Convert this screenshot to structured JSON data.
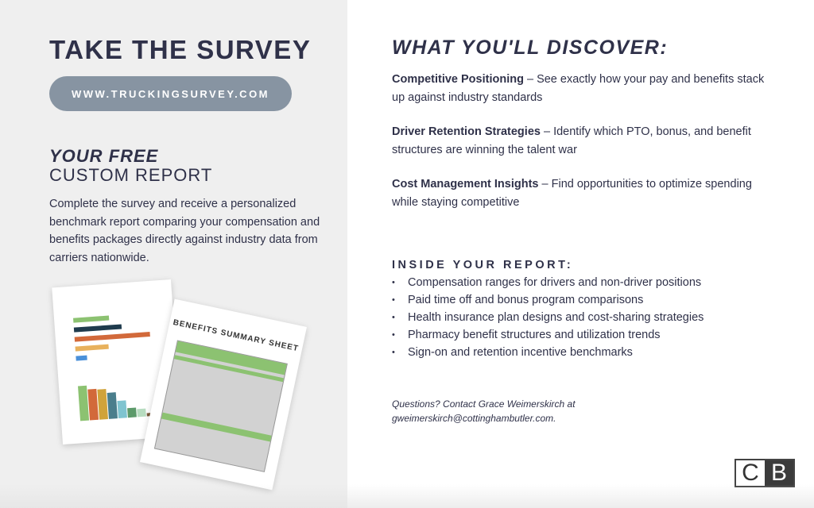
{
  "left": {
    "title": "TAKE THE SURVEY",
    "url_button": "WWW.TRUCKINGSURVEY.COM",
    "report_heading_1": "YOUR FREE",
    "report_heading_2": "CUSTOM REPORT",
    "description": "Complete the survey and receive a personalized benchmark report comparing your compensation and benefits packages directly against industry data from carriers nationwide.",
    "report_image": {
      "sheet_title": "BENEFITS SUMMARY SHEET",
      "colors": [
        "#8cc271",
        "#1f3b4d",
        "#d2693a",
        "#e8b15c",
        "#4a90d9",
        "#d0a33a",
        "#4a7e8c",
        "#7fc4d0"
      ]
    }
  },
  "right": {
    "title": "WHAT YOU'LL DISCOVER:",
    "features": [
      {
        "name": "Competitive Positioning",
        "text": " – See exactly how your pay and benefits stack up against industry standards"
      },
      {
        "name": "Driver Retention Strategies",
        "text": " – Identify which PTO, bonus, and benefit structures are winning the talent war"
      },
      {
        "name": "Cost Management Insights",
        "text": " – Find opportunities to optimize spending while staying competitive"
      }
    ],
    "inside_title": "INSIDE YOUR REPORT:",
    "inside_items": [
      "Compensation ranges for drivers and non-driver positions",
      "Paid time off and bonus program comparisons",
      "Health insurance plan designs and cost-sharing strategies",
      "Pharmacy benefit structures and utilization trends",
      "Sign-on and retention incentive benchmarks"
    ],
    "contact_line1": "Questions? Contact Grace Weimerskirch at",
    "contact_line2": "gweimerskirch@cottinghambutler.com.",
    "logo": {
      "c": "C",
      "b": "B"
    }
  }
}
